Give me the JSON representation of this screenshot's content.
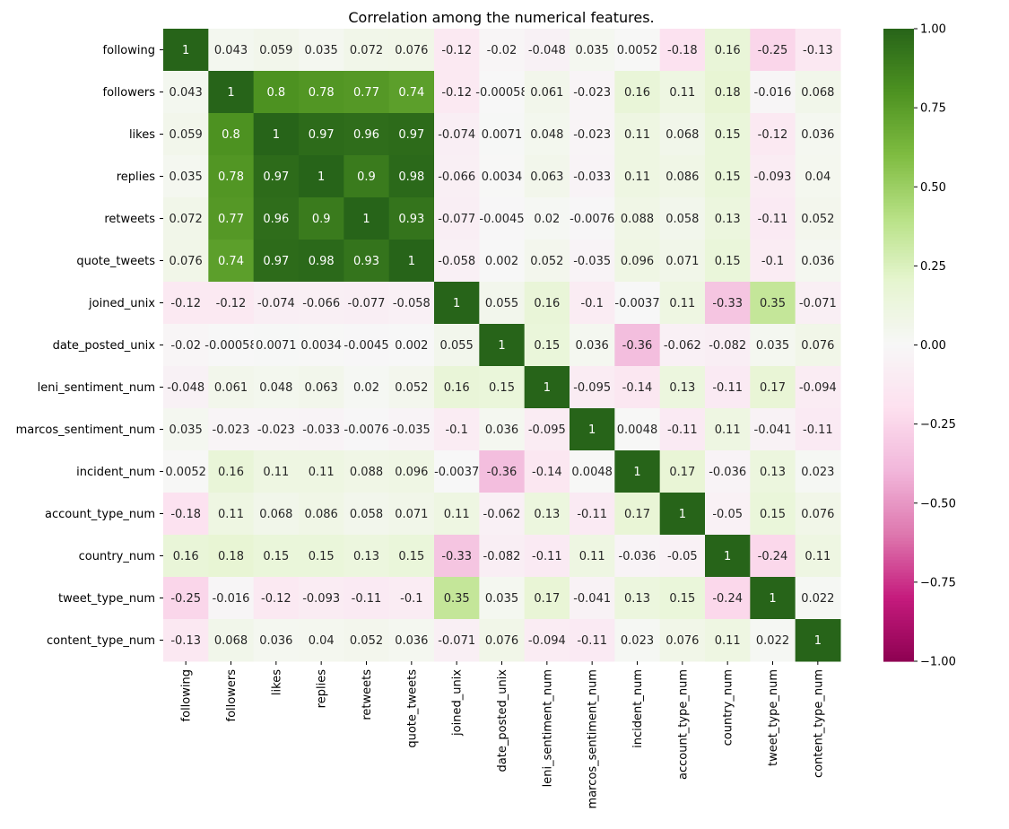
{
  "chart_data": {
    "type": "heatmap",
    "title": "Correlation among the numerical features.",
    "colormap": "PiYG",
    "vmin": -1,
    "vmax": 1,
    "colorbar_ticks": [
      1.0,
      0.75,
      0.5,
      0.25,
      0.0,
      -0.25,
      -0.5,
      -0.75,
      -1.0
    ],
    "colorbar_tick_labels": [
      "1.00",
      "0.75",
      "0.50",
      "0.25",
      "0.00",
      "−0.25",
      "−0.50",
      "−0.75",
      "−1.00"
    ],
    "labels": [
      "following",
      "followers",
      "likes",
      "replies",
      "retweets",
      "quote_tweets",
      "joined_unix",
      "date_posted_unix",
      "leni_sentiment_num",
      "marcos_sentiment_num",
      "incident_num",
      "account_type_num",
      "country_num",
      "tweet_type_num",
      "content_type_num"
    ],
    "matrix": [
      [
        1,
        0.043,
        0.059,
        0.035,
        0.072,
        0.076,
        -0.12,
        -0.02,
        -0.048,
        0.035,
        0.0052,
        -0.18,
        0.16,
        -0.25,
        -0.13
      ],
      [
        0.043,
        1,
        0.8,
        0.78,
        0.77,
        0.74,
        -0.12,
        -0.00058,
        0.061,
        -0.023,
        0.16,
        0.11,
        0.18,
        -0.016,
        0.068
      ],
      [
        0.059,
        0.8,
        1,
        0.97,
        0.96,
        0.97,
        -0.074,
        0.0071,
        0.048,
        -0.023,
        0.11,
        0.068,
        0.15,
        -0.12,
        0.036
      ],
      [
        0.035,
        0.78,
        0.97,
        1,
        0.9,
        0.98,
        -0.066,
        0.0034,
        0.063,
        -0.033,
        0.11,
        0.086,
        0.15,
        -0.093,
        0.04
      ],
      [
        0.072,
        0.77,
        0.96,
        0.9,
        1,
        0.93,
        -0.077,
        -0.0045,
        0.02,
        -0.0076,
        0.088,
        0.058,
        0.13,
        -0.11,
        0.052
      ],
      [
        0.076,
        0.74,
        0.97,
        0.98,
        0.93,
        1,
        -0.058,
        0.002,
        0.052,
        -0.035,
        0.096,
        0.071,
        0.15,
        -0.1,
        0.036
      ],
      [
        -0.12,
        -0.12,
        -0.074,
        -0.066,
        -0.077,
        -0.058,
        1,
        0.055,
        0.16,
        -0.1,
        -0.0037,
        0.11,
        -0.33,
        0.35,
        -0.071
      ],
      [
        -0.02,
        -0.00058,
        0.0071,
        0.0034,
        -0.0045,
        0.002,
        0.055,
        1,
        0.15,
        0.036,
        -0.36,
        -0.062,
        -0.082,
        0.035,
        0.076
      ],
      [
        -0.048,
        0.061,
        0.048,
        0.063,
        0.02,
        0.052,
        0.16,
        0.15,
        1,
        -0.095,
        -0.14,
        0.13,
        -0.11,
        0.17,
        -0.094
      ],
      [
        0.035,
        -0.023,
        -0.023,
        -0.033,
        -0.0076,
        -0.035,
        -0.1,
        0.036,
        -0.095,
        1,
        0.0048,
        -0.11,
        0.11,
        -0.041,
        -0.11
      ],
      [
        0.0052,
        0.16,
        0.11,
        0.11,
        0.088,
        0.096,
        -0.0037,
        -0.36,
        -0.14,
        0.0048,
        1,
        0.17,
        -0.036,
        0.13,
        0.023
      ],
      [
        -0.18,
        0.11,
        0.068,
        0.086,
        0.058,
        0.071,
        0.11,
        -0.062,
        0.13,
        -0.11,
        0.17,
        1,
        -0.05,
        0.15,
        0.076
      ],
      [
        0.16,
        0.18,
        0.15,
        0.15,
        0.13,
        0.15,
        -0.33,
        -0.082,
        -0.11,
        0.11,
        -0.036,
        -0.05,
        1,
        -0.24,
        0.11
      ],
      [
        -0.25,
        -0.016,
        -0.12,
        -0.093,
        -0.11,
        -0.1,
        0.35,
        0.035,
        0.17,
        -0.041,
        0.13,
        0.15,
        -0.24,
        1,
        0.022
      ],
      [
        -0.13,
        0.068,
        0.036,
        0.04,
        0.052,
        0.036,
        -0.071,
        0.076,
        -0.094,
        -0.11,
        0.023,
        0.076,
        0.11,
        0.022,
        1
      ]
    ]
  }
}
